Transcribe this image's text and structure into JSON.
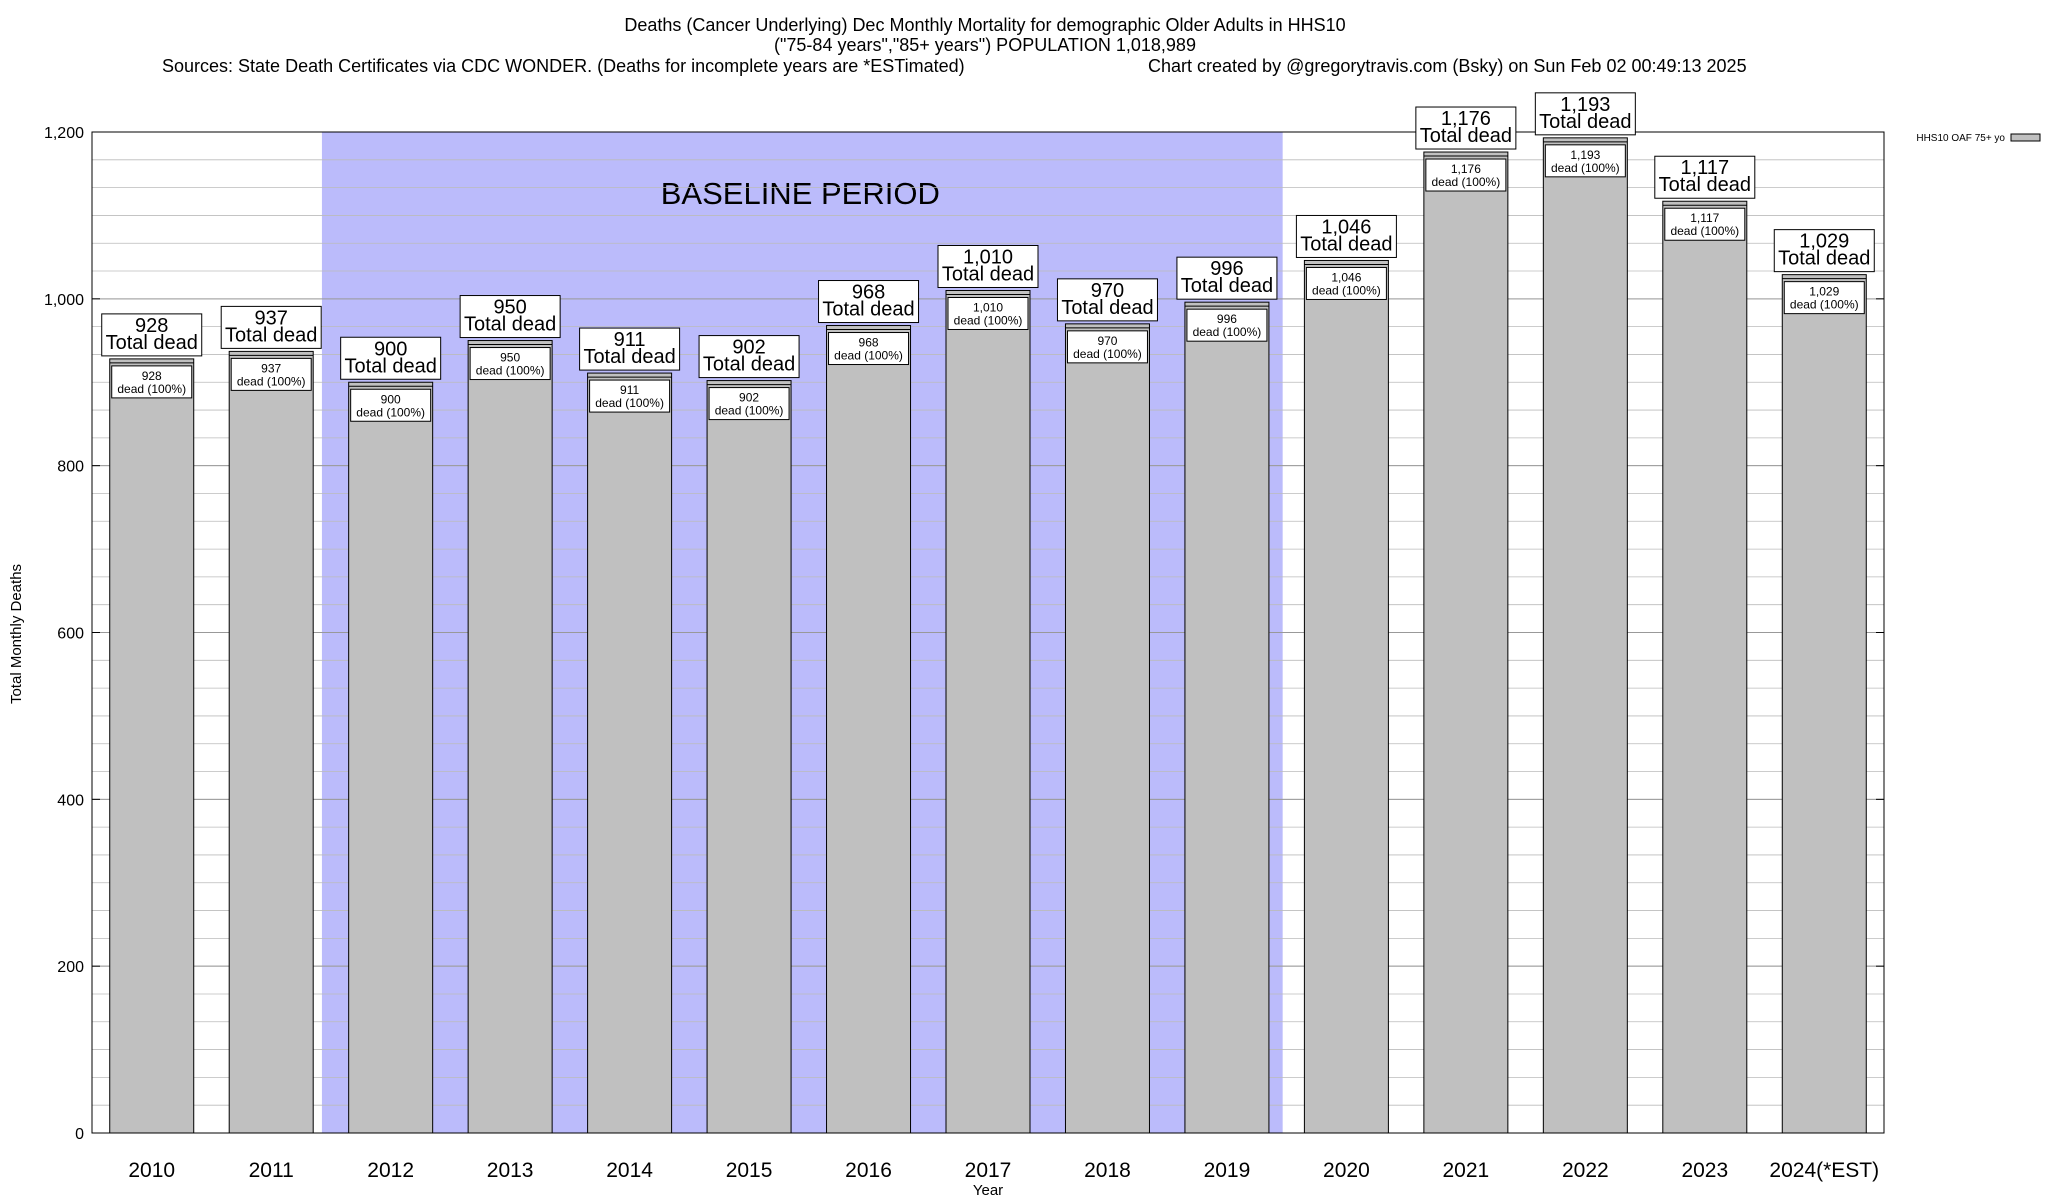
{
  "chart_data": {
    "type": "bar",
    "title": [
      "Deaths (Cancer Underlying) Dec Monthly Mortality for demographic Older Adults in HHS10",
      "(\"75-84 years\",\"85+ years\") POPULATION 1,018,989"
    ],
    "sources": "Sources: State Death Certificates via CDC WONDER. (Deaths for incomplete years are *ESTimated)",
    "credit": "Chart created by @gregorytravis.com (Bsky) on Sun Feb 02 00:49:13 2025",
    "xlabel": "Year",
    "ylabel": "Total Monthly Deaths",
    "ylim": [
      0,
      1200
    ],
    "yticks": [
      0,
      200,
      400,
      600,
      800,
      1000,
      1200
    ],
    "ytick_labels": [
      "0",
      "200",
      "400",
      "600",
      "800",
      "1,000",
      "1,200"
    ],
    "minor_gridlines": true,
    "categories": [
      "2010",
      "2011",
      "2012",
      "2013",
      "2014",
      "2015",
      "2016",
      "2017",
      "2018",
      "2019",
      "2020",
      "2021",
      "2022",
      "2023",
      "2024(*EST)"
    ],
    "series": [
      {
        "name": "HHS10 OAF 75+ yo",
        "values": [
          928,
          937,
          900,
          950,
          911,
          902,
          968,
          1010,
          970,
          996,
          1046,
          1176,
          1193,
          1117,
          1029
        ]
      }
    ],
    "value_labels": [
      "928",
      "937",
      "900",
      "950",
      "911",
      "902",
      "968",
      "1,010",
      "970",
      "996",
      "1,046",
      "1,176",
      "1,193",
      "1,117",
      "1,029"
    ],
    "total_label_suffix": "Total dead",
    "inner_label_suffix": "dead (100%)",
    "legend_placement": "top-right",
    "baseline": {
      "label": "BASELINE PERIOD",
      "start_category": "2012",
      "end_category": "2019",
      "color": "#bbbbfb"
    },
    "colors": {
      "bar_fill": "#c0c0c0",
      "bar_stroke": "#000000",
      "grid": "#bbbbbb",
      "background": "#ffffff"
    }
  }
}
